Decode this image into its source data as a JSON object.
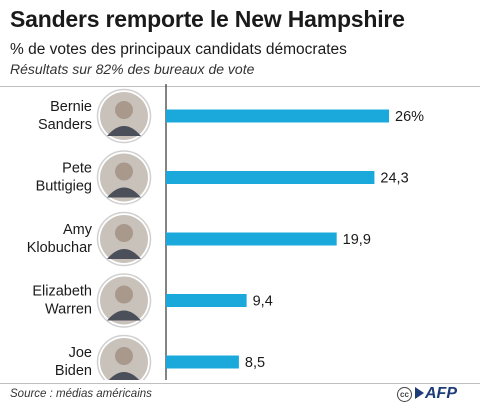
{
  "title": "Sanders remporte le New Hampshire",
  "subtitle": "% de votes des principaux candidats démocrates",
  "note": "Résultats sur 82% des bureaux de vote",
  "source": "Source : médias américains",
  "logo": "AFP",
  "cc_icon": "creative-commons-icon",
  "colors": {
    "bar": "#1ba9dc",
    "axis": "#333333",
    "logo": "#1e3c78"
  },
  "chart_data": {
    "type": "bar",
    "orientation": "horizontal",
    "categories": [
      [
        "Bernie",
        "Sanders"
      ],
      [
        "Pete",
        "Buttigieg"
      ],
      [
        "Amy",
        "Klobuchar"
      ],
      [
        "Elizabeth",
        "Warren"
      ],
      [
        "Joe",
        "Biden"
      ]
    ],
    "values": [
      26,
      24.3,
      19.9,
      9.4,
      8.5
    ],
    "value_labels": [
      "26%",
      "24,3",
      "19,9",
      "9,4",
      "8,5"
    ],
    "xlim": [
      0,
      26
    ],
    "grid": false,
    "legend": "none"
  }
}
